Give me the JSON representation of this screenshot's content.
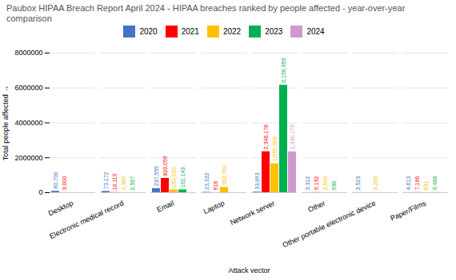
{
  "chart_data": {
    "type": "bar",
    "title": "Paubox HIPAA Breach Report April 2024 - HIPAA breaches ranked by people affected - year-over-year comparison",
    "xlabel": "Attack vector",
    "ylabel": "Total people affected",
    "categories": [
      "Desktop",
      "Electronic medical record",
      "Email",
      "Laptop",
      "Network server",
      "Other",
      "Other portable electronic device",
      "Paper/Films"
    ],
    "series": [
      {
        "name": "2020",
        "color": "#4472c4",
        "values": [
          80700,
          73172,
          237559,
          23322,
          33893,
          3312,
          3523,
          4613
        ],
        "value_labels": [
          "80,700",
          "73,172",
          "237,559",
          "23,322",
          "33,893",
          "3,312",
          "3,523",
          "4,613"
        ]
      },
      {
        "name": "2021",
        "color": "#ff0000",
        "values": [
          3000,
          10119,
          820059,
          916,
          2346178,
          9192,
          0,
          7166
        ],
        "value_labels": [
          "3,000",
          "10,119",
          "820,059",
          "916",
          "2,346,178",
          "9,192",
          null,
          "7,166"
        ]
      },
      {
        "name": "2022",
        "color": "#ffc000",
        "values": [
          0,
          4360,
          164030,
          302951,
          1655058,
          3000,
          4265,
          831
        ],
        "value_labels": [
          null,
          "4,360",
          "164,030",
          "302,951",
          "1,655,058",
          "3,000",
          "4,265",
          "831"
        ]
      },
      {
        "name": "2023",
        "color": "#00b050",
        "values": [
          0,
          2567,
          161143,
          0,
          6156956,
          936,
          0,
          9468
        ],
        "value_labels": [
          null,
          "2,567",
          "161,143",
          null,
          "6,156,956",
          "936",
          null,
          "9,468"
        ]
      },
      {
        "name": "2024",
        "color": "#cc99cc",
        "values": [
          0,
          0,
          0,
          0,
          2340179,
          0,
          0,
          0
        ],
        "value_labels": [
          null,
          null,
          null,
          null,
          "2,340,179",
          null,
          null,
          null
        ]
      }
    ],
    "ylim": [
      0,
      8000000
    ],
    "yticks": [
      0,
      2000000,
      4000000,
      6000000,
      8000000
    ],
    "grid": true,
    "legend": "top",
    "data_labels": true
  }
}
